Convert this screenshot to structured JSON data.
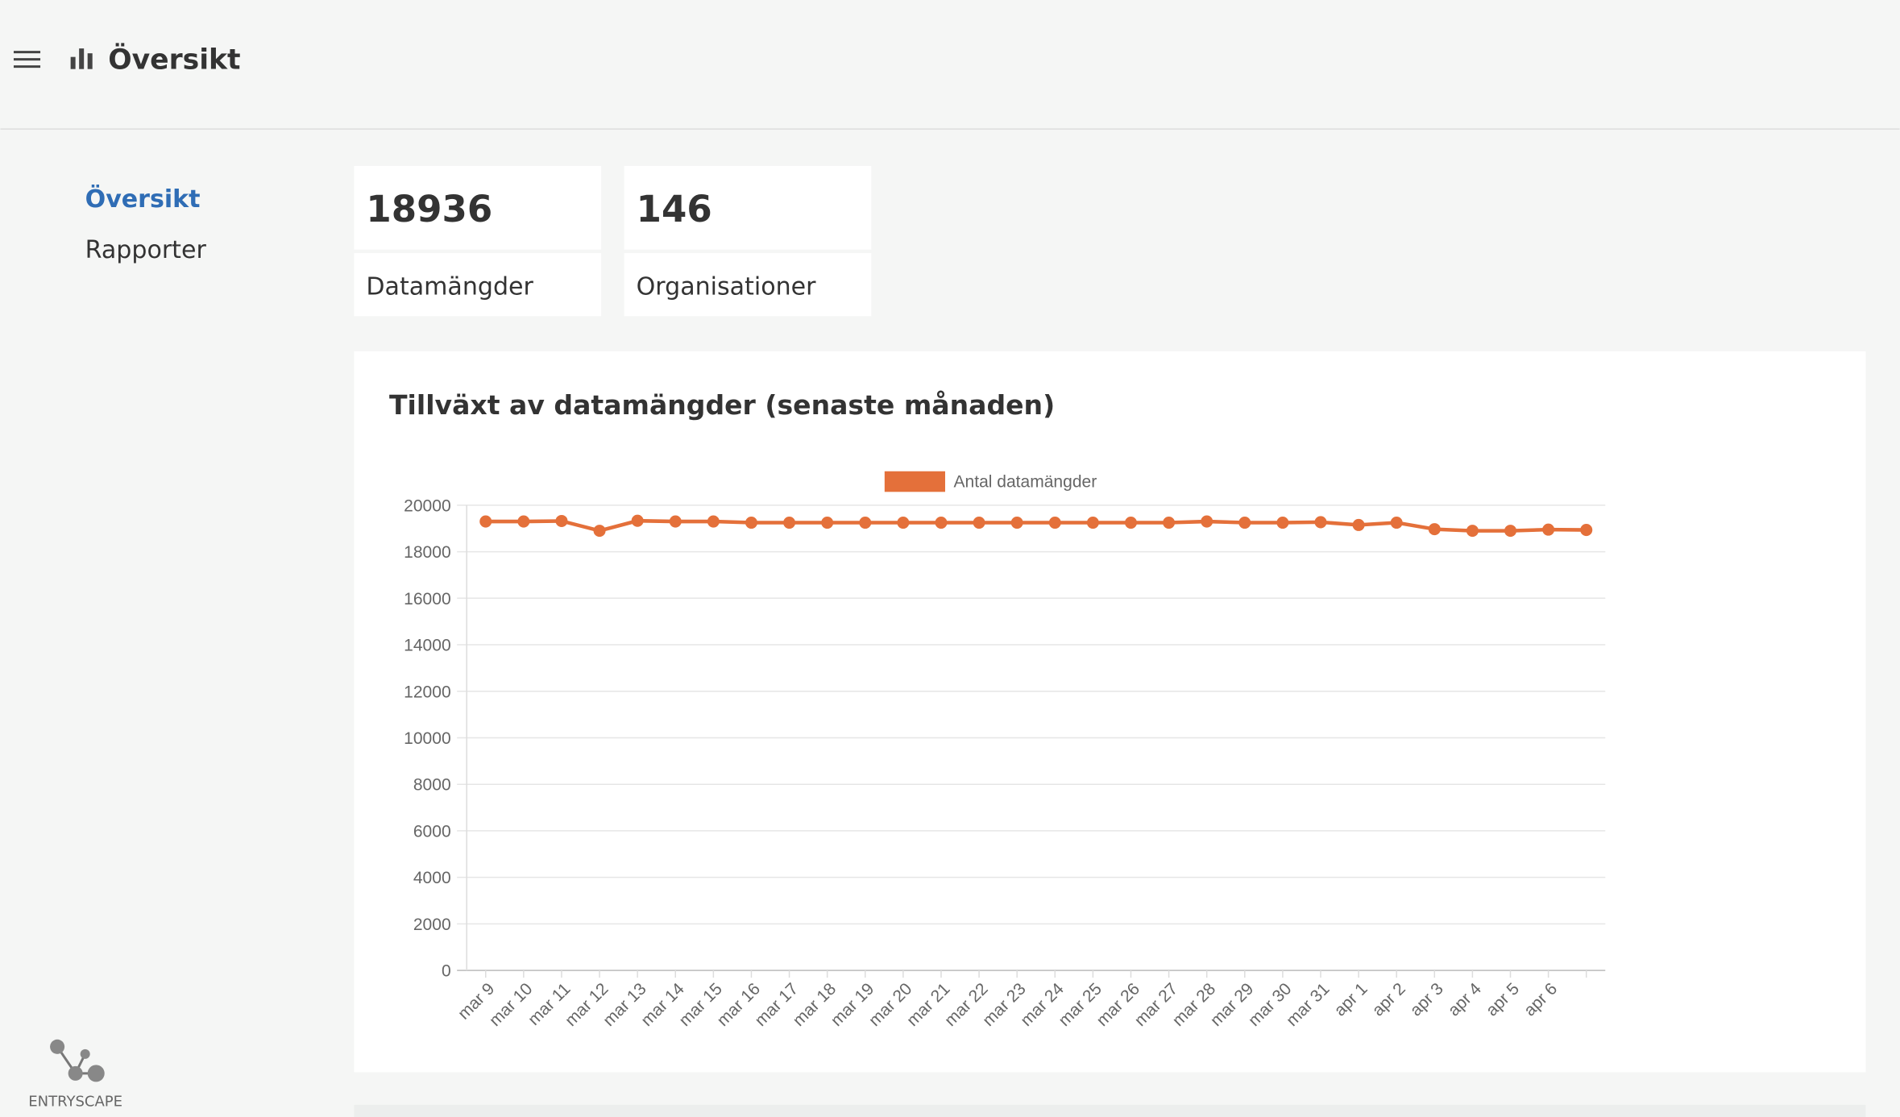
{
  "header": {
    "title": "Översikt"
  },
  "nav": [
    "Översikt",
    "Rapporter"
  ],
  "stats": [
    {
      "value": "18936",
      "label": "Datamängder"
    },
    {
      "value": "146",
      "label": "Organisationer"
    }
  ],
  "chart_data": {
    "type": "line",
    "title": "Tillväxt av datamängder (senaste månaden)",
    "categories": [
      "mar 9",
      "mar 10",
      "mar 11",
      "mar 12",
      "mar 13",
      "mar 14",
      "mar 15",
      "mar 16",
      "mar 17",
      "mar 18",
      "mar 19",
      "mar 20",
      "mar 21",
      "mar 22",
      "mar 23",
      "mar 24",
      "mar 25",
      "mar 26",
      "mar 27",
      "mar 28",
      "mar 29",
      "mar 30",
      "mar 31",
      "apr 1",
      "apr 2",
      "apr 3",
      "apr 4",
      "apr 5",
      "apr 6",
      null
    ],
    "series": [
      {
        "name": "Antal datamängder",
        "color": "#e4703a",
        "values": [
          19300,
          19300,
          19320,
          18900,
          19330,
          19300,
          19300,
          19250,
          19250,
          19250,
          19250,
          19250,
          19250,
          19250,
          19250,
          19250,
          19250,
          19250,
          19250,
          19300,
          19250,
          19250,
          19270,
          19150,
          19250,
          18970,
          18900,
          18900,
          18950,
          18936
        ]
      }
    ],
    "ylim": [
      0,
      20000
    ],
    "yticks": [
      0,
      2000,
      4000,
      6000,
      8000,
      10000,
      12000,
      14000,
      16000,
      18000,
      20000
    ],
    "grid": true,
    "legend": "top"
  },
  "footer": {
    "logo": "ENTRYSCAPE"
  }
}
